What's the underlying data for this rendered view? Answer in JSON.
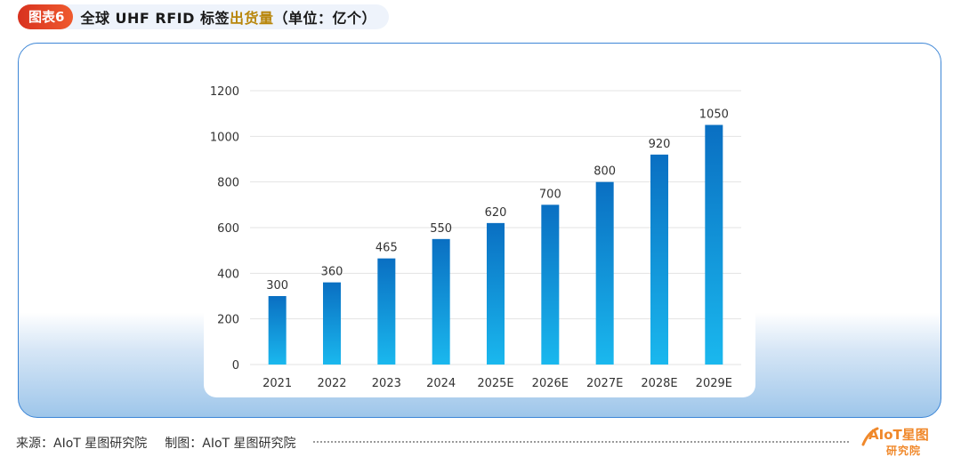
{
  "header": {
    "badge": "图表6",
    "title_prefix": "全球 UHF RFID 标签",
    "title_highlight": "出货量",
    "title_suffix": "（单位：亿个）"
  },
  "chart_data": {
    "type": "bar",
    "categories": [
      "2021",
      "2022",
      "2023",
      "2024",
      "2025E",
      "2026E",
      "2027E",
      "2028E",
      "2029E"
    ],
    "values": [
      300,
      360,
      465,
      550,
      620,
      700,
      800,
      920,
      1050
    ],
    "title": "全球 UHF RFID 标签出货量（单位：亿个）",
    "xlabel": "",
    "ylabel": "",
    "ylim": [
      0,
      1200
    ],
    "yticks": [
      0,
      200,
      400,
      600,
      800,
      1000,
      1200
    ],
    "grid": true,
    "legend": false,
    "bar_gradient": [
      "#0a6fc2",
      "#1ab8ee"
    ],
    "data_labels": true
  },
  "footer": {
    "source": "来源：AIoT 星图研究院",
    "maker": "制图：AIoT 星图研究院"
  },
  "logo": {
    "line1": "AIoT星图",
    "line2": "研究院"
  },
  "colors": {
    "accent": "#3d86d6",
    "badge": "#e0401f",
    "logo": "#f0882a"
  }
}
